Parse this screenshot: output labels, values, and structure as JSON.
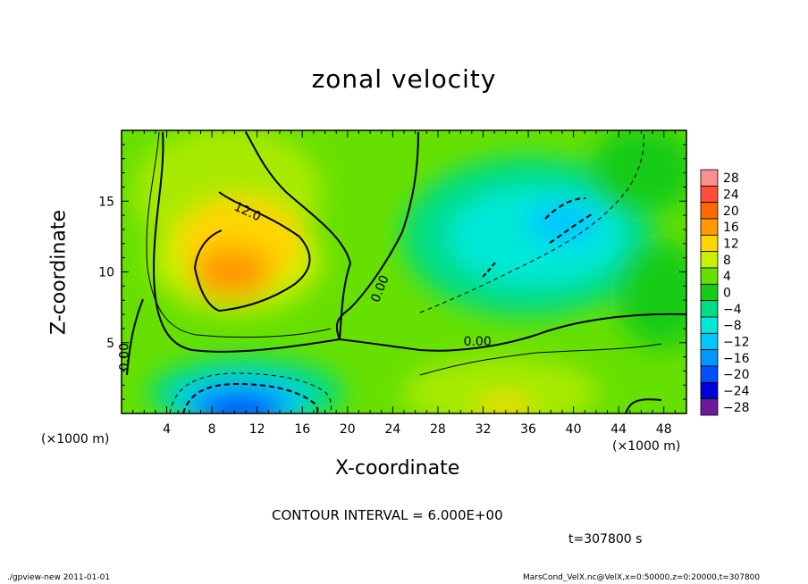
{
  "chart_data": {
    "type": "heatmap",
    "title": "zonal velocity",
    "xlabel": "X-coordinate",
    "ylabel": "Z-coordinate",
    "x_unit_label_left": "(×1000 m)",
    "x_unit_label_right": "(×1000 m)",
    "xlim": [
      0,
      50
    ],
    "ylim": [
      0,
      20
    ],
    "x_ticks": [
      4,
      8,
      12,
      16,
      20,
      24,
      28,
      32,
      36,
      40,
      44,
      48
    ],
    "y_ticks": [
      5,
      10,
      15
    ],
    "colorbar": {
      "levels": [
        28,
        24,
        20,
        16,
        12,
        8,
        4,
        0,
        -4,
        -8,
        -12,
        -16,
        -20,
        -24,
        -28
      ],
      "labels": [
        "28",
        "24",
        "20",
        "16",
        "12",
        "8",
        "4",
        "0",
        "−4",
        "−8",
        "−12",
        "−16",
        "−20",
        "−24",
        "−28"
      ],
      "colors": [
        "#ff8f8f",
        "#ff4f3a",
        "#ff6a00",
        "#ff9a00",
        "#ffd500",
        "#c9f000",
        "#66e000",
        "#16cc16",
        "#00dd84",
        "#00e8d8",
        "#00c8ff",
        "#0096ff",
        "#0050ff",
        "#0000d6",
        "#6a1a9a"
      ]
    },
    "contour_labels": [
      {
        "text": "12.0",
        "x": 11.0,
        "z": 14.0
      },
      {
        "text": "0.00",
        "x": 23.2,
        "z": 8.7
      },
      {
        "text": "0.00",
        "x": 31.5,
        "z": 4.8
      },
      {
        "text": "0.00",
        "x": 0.6,
        "z": 4.0
      }
    ],
    "features": [
      {
        "kind": "max",
        "x": 10.5,
        "z": 10.0,
        "value": 16
      },
      {
        "kind": "min",
        "x": 40.0,
        "z": 13.5,
        "value": -12
      },
      {
        "kind": "min",
        "x": 12.0,
        "z": 0.7,
        "value": -22
      }
    ]
  },
  "contour_interval_text": "CONTOUR INTERVAL = 6.000E+00",
  "time_text": "t=307800 s",
  "footer_left": "./gpview-new  2011-01-01",
  "footer_right": "MarsCond_VelX.nc@VelX,x=0:50000,z=0:20000,t=307800"
}
